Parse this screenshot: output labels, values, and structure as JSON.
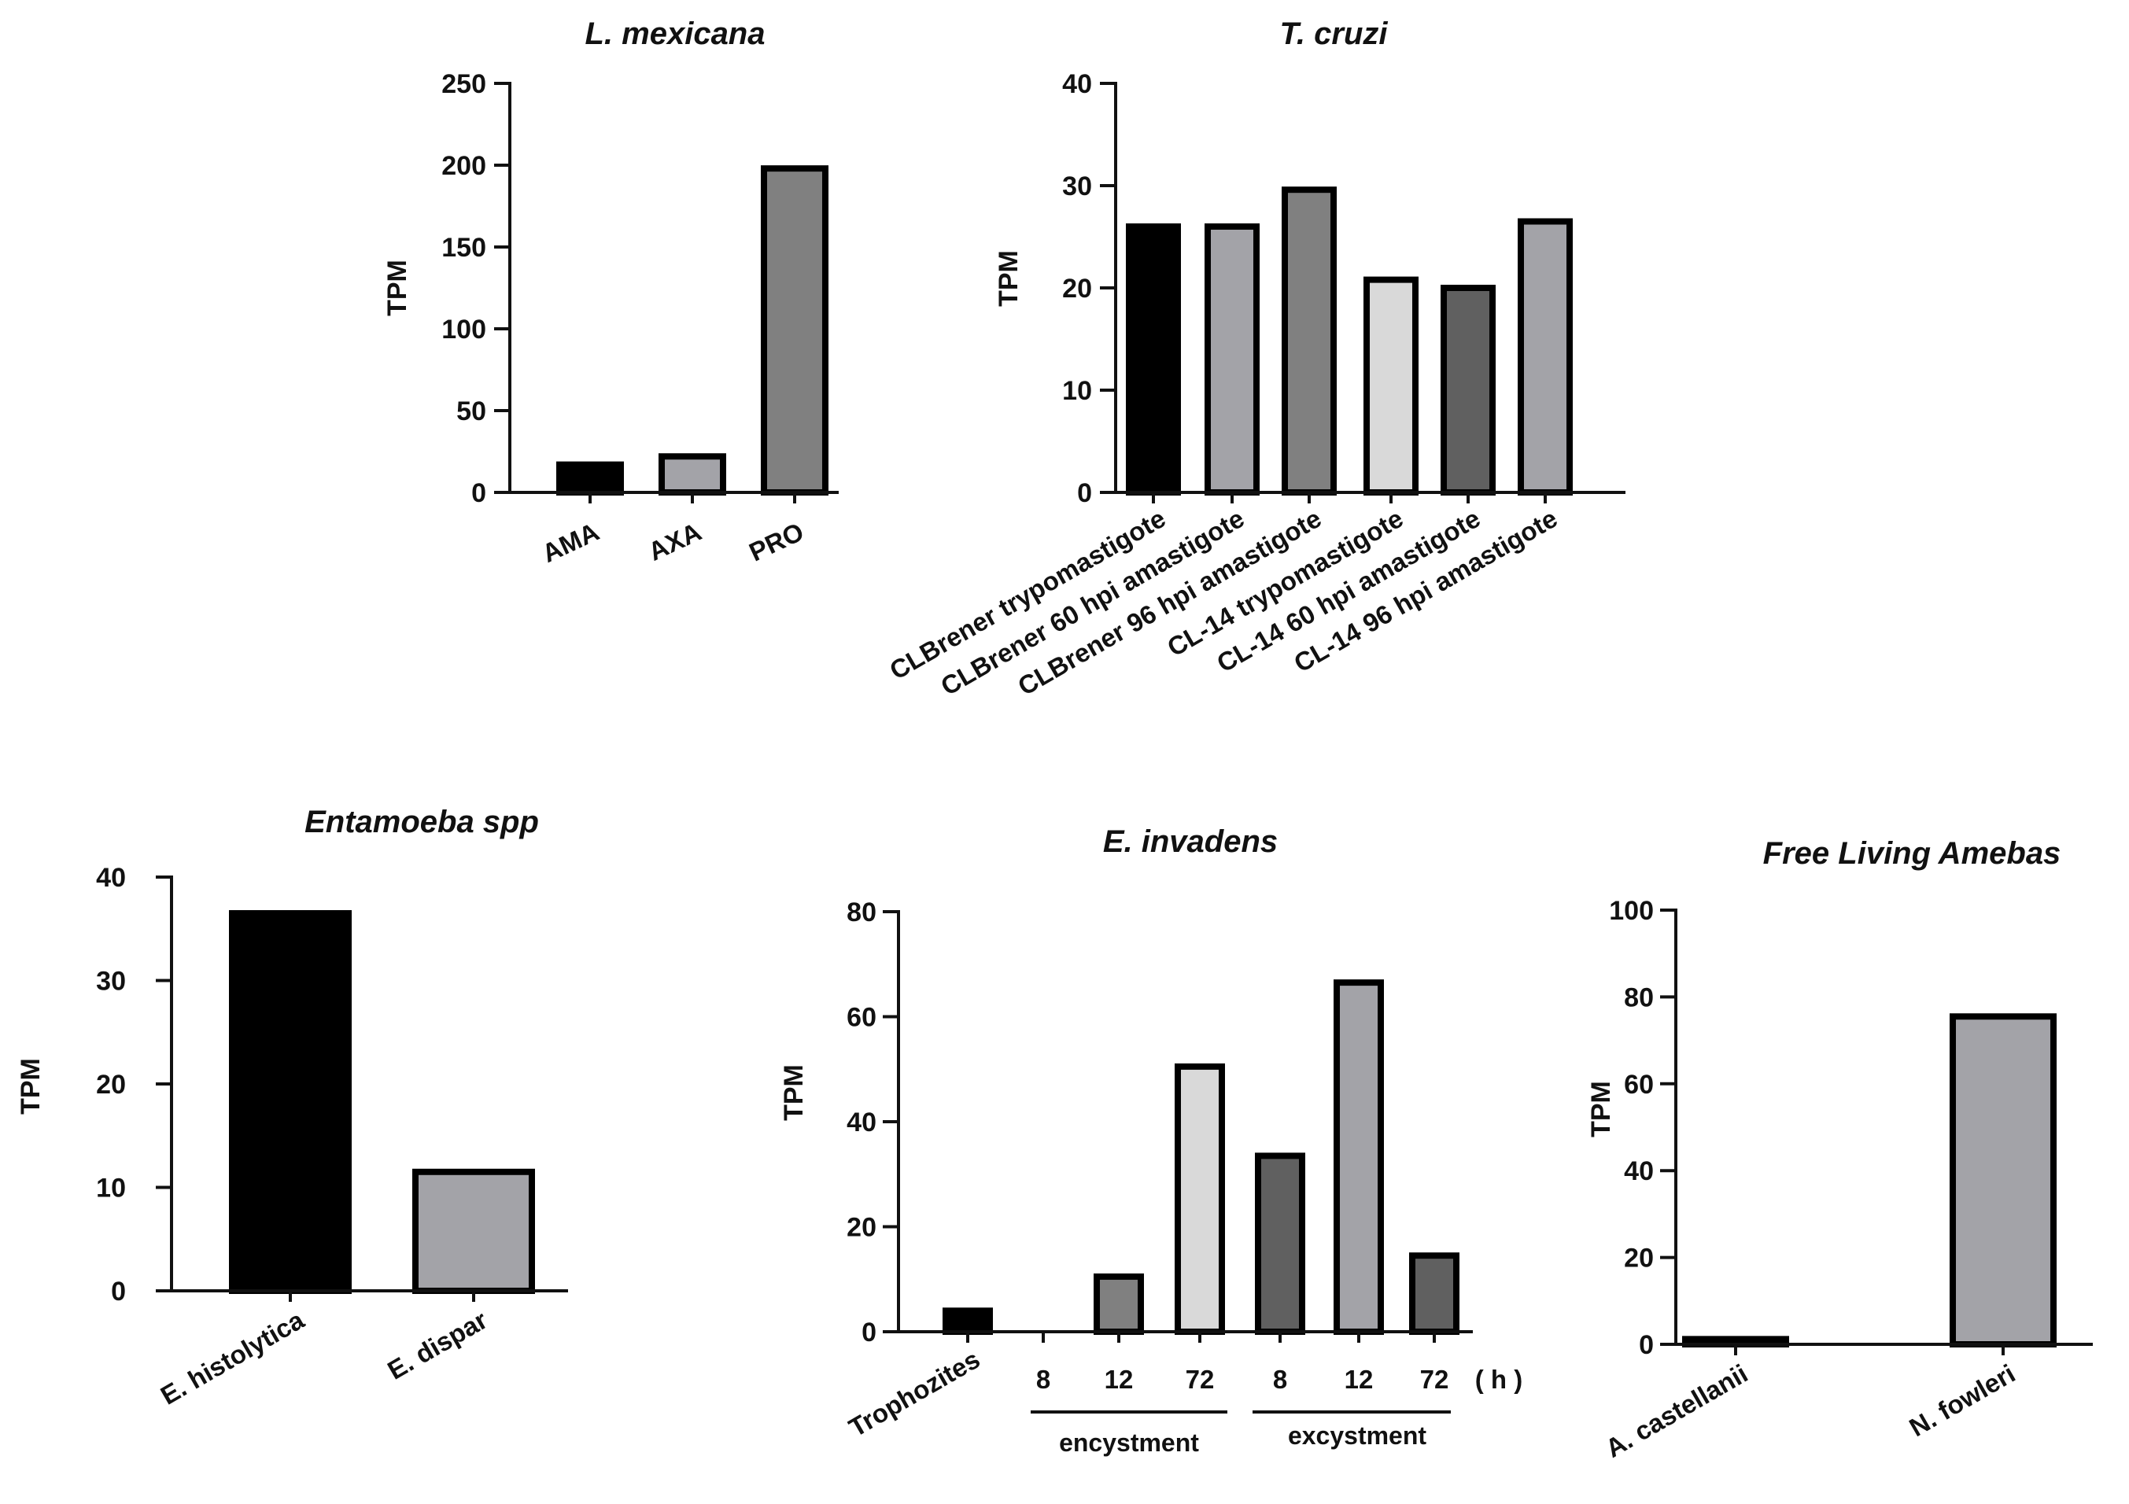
{
  "colors": {
    "black": "#000000",
    "gray_mid": "#a3a3a8",
    "gray_dark": "#808080",
    "gray_light": "#d9d9d9",
    "gray_charcoal": "#606060"
  },
  "chart_data": [
    {
      "type": "bar",
      "title": "L. mexicana",
      "ylabel": "TPM",
      "ylim": [
        0,
        250
      ],
      "yticks": [
        0,
        50,
        100,
        150,
        200,
        250
      ],
      "categories": [
        "AMA",
        "AXA",
        "PRO"
      ],
      "values": [
        17,
        22,
        198
      ],
      "bar_colors": [
        "black",
        "gray_mid",
        "gray_dark"
      ]
    },
    {
      "type": "bar",
      "title": "T. cruzi",
      "ylabel": "TPM",
      "ylim": [
        0,
        40
      ],
      "yticks": [
        0,
        10,
        20,
        30,
        40
      ],
      "categories": [
        "CLBrener trypomastigote",
        "CLBrener 60 hpi amastigote",
        "CLBrener 96 hpi amastigote",
        "CL-14 trypomastigote",
        "CL-14 60 hpi amastigote",
        "CL-14 96 hpi amastigote"
      ],
      "values": [
        26,
        26,
        29.6,
        20.8,
        20,
        26.5
      ],
      "bar_colors": [
        "black",
        "gray_mid",
        "gray_dark",
        "gray_light",
        "gray_charcoal",
        "gray_mid"
      ]
    },
    {
      "type": "bar",
      "title": "Entamoeba spp",
      "ylabel": "TPM",
      "ylim": [
        0,
        40
      ],
      "yticks": [
        0,
        10,
        20,
        30,
        40
      ],
      "categories": [
        "E. histolytica",
        "E. dispar"
      ],
      "values": [
        36.5,
        11.5
      ],
      "bar_colors": [
        "black",
        "gray_mid"
      ]
    },
    {
      "type": "bar",
      "title": "E. invadens",
      "ylabel": "TPM",
      "ylim": [
        0,
        80
      ],
      "yticks": [
        0,
        20,
        40,
        60,
        80
      ],
      "categories": [
        "Trophozites",
        "8",
        "12",
        "72",
        "8",
        "12",
        "72"
      ],
      "values": [
        4,
        0,
        10.5,
        50.5,
        33.5,
        66.5,
        14.5
      ],
      "bar_colors": [
        "black",
        "gray_mid",
        "gray_dark",
        "gray_light",
        "gray_charcoal",
        "gray_mid",
        "gray_charcoal"
      ],
      "unit_label": "( h )",
      "groups": [
        "encystment",
        "excystment"
      ]
    },
    {
      "type": "bar",
      "title": "Free Living Amebas",
      "ylabel": "TPM",
      "ylim": [
        0,
        100
      ],
      "yticks": [
        0,
        20,
        40,
        60,
        80,
        100
      ],
      "categories": [
        "A. castellanii",
        "N. fowleri"
      ],
      "values": [
        1.2,
        75.5
      ],
      "bar_colors": [
        "black",
        "gray_mid"
      ]
    }
  ]
}
